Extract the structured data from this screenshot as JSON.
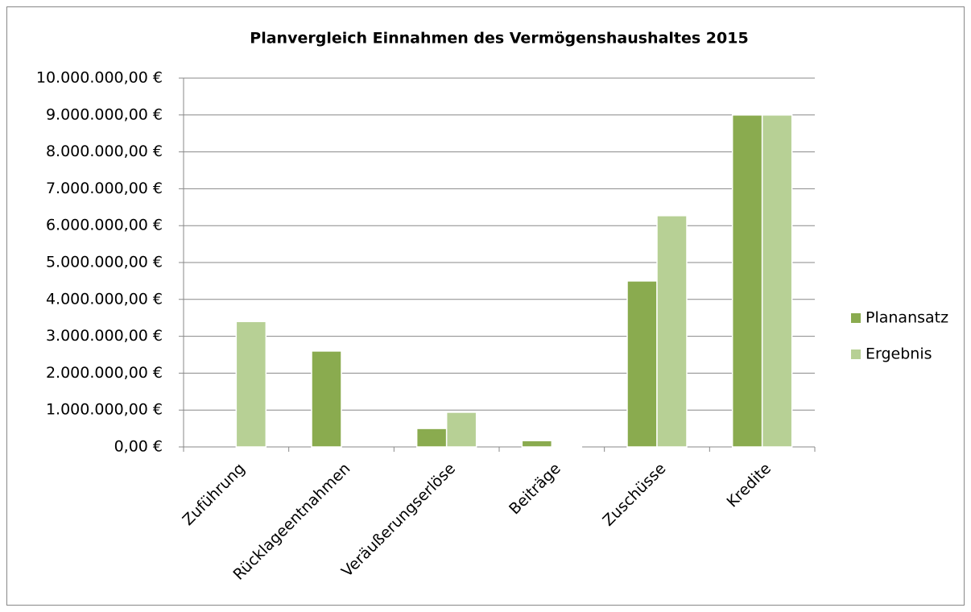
{
  "chart_data": {
    "type": "bar",
    "title": "Planvergleich Einnahmen des Vermögenshaushaltes 2015",
    "categories": [
      "Zuführung",
      "Rücklageentnahmen",
      "Veräußerungserlöse",
      "Beiträge",
      "Zuschüsse",
      "Kredite"
    ],
    "series": [
      {
        "name": "Planansatz",
        "color": "#8aab4f",
        "values": [
          0,
          2600000,
          500000,
          170000,
          4500000,
          9000000
        ]
      },
      {
        "name": "Ergebnis",
        "color": "#b7d095",
        "values": [
          3400000,
          0,
          940000,
          30000,
          6270000,
          9000000
        ]
      }
    ],
    "ylim": [
      0,
      10000000
    ],
    "yticks": [
      {
        "value": 0,
        "label": "0,00 €"
      },
      {
        "value": 1000000,
        "label": "1.000.000,00 €"
      },
      {
        "value": 2000000,
        "label": "2.000.000,00 €"
      },
      {
        "value": 3000000,
        "label": "3.000.000,00 €"
      },
      {
        "value": 4000000,
        "label": "4.000.000,00 €"
      },
      {
        "value": 5000000,
        "label": "5.000.000,00 €"
      },
      {
        "value": 6000000,
        "label": "6.000.000,00 €"
      },
      {
        "value": 7000000,
        "label": "7.000.000,00 €"
      },
      {
        "value": 8000000,
        "label": "8.000.000,00 €"
      },
      {
        "value": 9000000,
        "label": "9.000.000,00 €"
      },
      {
        "value": 10000000,
        "label": "10.000.000,00 €"
      }
    ],
    "grid": true,
    "legend": "right"
  }
}
